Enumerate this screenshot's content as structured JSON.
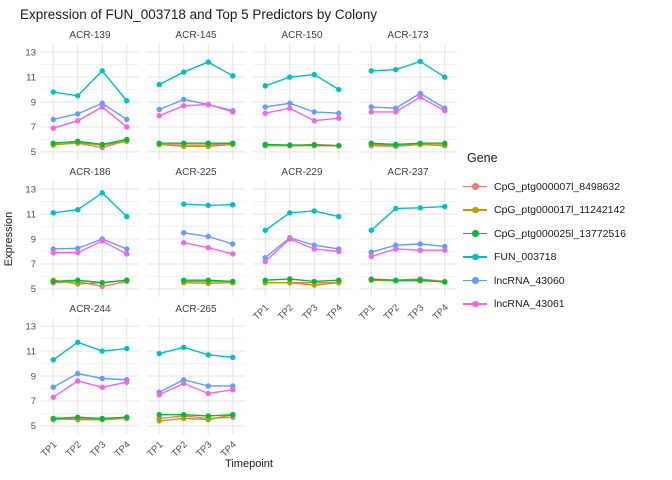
{
  "title": "Expression of FUN_003718 and Top 5 Predictors by Colony",
  "legend": {
    "title": "Gene"
  },
  "axes": {
    "x_title": "Timepoint",
    "y_title": "Expression",
    "x_ticks": [
      "TP1",
      "TP2",
      "TP3",
      "TP4"
    ],
    "y_major_ticks": [
      5,
      7,
      9,
      11,
      13
    ],
    "y_minor_ticks": [
      6,
      8,
      10,
      12
    ]
  },
  "style": {
    "grid_major_color": "#e3e3e3",
    "grid_minor_color": "#f1f1f1",
    "tick_label_color": "#4d4d4d",
    "strip_label_color": "#404040"
  },
  "chart_data": {
    "type": "line",
    "title": "Expression of FUN_003718 and Top 5 Predictors by Colony",
    "xlabel": "Timepoint",
    "ylabel": "Expression",
    "x": [
      "TP1",
      "TP2",
      "TP3",
      "TP4"
    ],
    "ylim": [
      5,
      13
    ],
    "grid": true,
    "legend_position": "right",
    "facet_by": "Colony",
    "series_names": [
      "CpG_ptg000007l_8498632",
      "CpG_ptg000017l_11242142",
      "CpG_ptg000025l_13772516",
      "FUN_003718",
      "lncRNA_43060",
      "lncRNA_43061"
    ],
    "series_colors": [
      "#F8766D",
      "#B79F00",
      "#00BA38",
      "#00BFC4",
      "#619CFF",
      "#F564E3"
    ],
    "facets": [
      {
        "name": "ACR-139",
        "values": [
          [
            5.6,
            5.7,
            5.35,
            5.9
          ],
          [
            5.55,
            5.75,
            5.55,
            5.85
          ],
          [
            5.7,
            5.85,
            5.6,
            6.0
          ],
          [
            9.8,
            9.5,
            11.5,
            9.1
          ],
          [
            7.6,
            8.05,
            8.9,
            7.6
          ],
          [
            6.9,
            7.5,
            8.6,
            7.0
          ]
        ]
      },
      {
        "name": "ACR-145",
        "values": [
          [
            5.6,
            5.55,
            5.55,
            5.7
          ],
          [
            5.6,
            5.45,
            5.45,
            5.6
          ],
          [
            5.7,
            5.7,
            5.7,
            5.7
          ],
          [
            10.4,
            11.4,
            12.2,
            11.1
          ],
          [
            8.4,
            9.2,
            8.8,
            8.3
          ],
          [
            7.9,
            8.7,
            8.8,
            8.2
          ]
        ]
      },
      {
        "name": "ACR-150",
        "values": [
          [
            5.6,
            5.5,
            5.6,
            5.5
          ],
          [
            5.5,
            5.5,
            5.5,
            5.5
          ],
          [
            5.6,
            5.55,
            5.55,
            5.5
          ],
          [
            10.3,
            11.0,
            11.2,
            10.0
          ],
          [
            8.6,
            8.9,
            8.2,
            8.1
          ],
          [
            8.1,
            8.5,
            7.5,
            7.7
          ]
        ]
      },
      {
        "name": "ACR-173",
        "values": [
          [
            5.5,
            5.45,
            5.6,
            5.5
          ],
          [
            5.6,
            5.5,
            5.6,
            5.55
          ],
          [
            5.7,
            5.6,
            5.7,
            5.7
          ],
          [
            11.5,
            11.6,
            12.25,
            11.0
          ],
          [
            8.6,
            8.5,
            9.7,
            8.5
          ],
          [
            8.2,
            8.2,
            9.4,
            8.3
          ]
        ]
      },
      {
        "name": "ACR-186",
        "values": [
          [
            5.5,
            5.6,
            5.2,
            5.6
          ],
          [
            5.7,
            5.4,
            5.5,
            5.7
          ],
          [
            5.6,
            5.7,
            5.5,
            5.7
          ],
          [
            11.1,
            11.35,
            12.7,
            10.8
          ],
          [
            8.2,
            8.25,
            9.0,
            8.2
          ],
          [
            7.9,
            7.9,
            8.85,
            7.8
          ]
        ]
      },
      {
        "name": "ACR-225",
        "values": [
          [
            null,
            5.6,
            5.6,
            5.6
          ],
          [
            null,
            5.5,
            5.45,
            5.5
          ],
          [
            null,
            5.7,
            5.7,
            5.6
          ],
          [
            null,
            11.8,
            11.7,
            11.75
          ],
          [
            null,
            9.5,
            9.2,
            8.6
          ],
          [
            null,
            8.7,
            8.3,
            7.8
          ]
        ]
      },
      {
        "name": "ACR-229",
        "values": [
          [
            5.5,
            5.5,
            5.5,
            5.5
          ],
          [
            5.5,
            5.5,
            5.3,
            5.5
          ],
          [
            5.7,
            5.8,
            5.6,
            5.7
          ],
          [
            9.7,
            11.1,
            11.25,
            10.8
          ],
          [
            7.5,
            9.1,
            8.5,
            8.2
          ],
          [
            7.2,
            9.0,
            8.2,
            8.0
          ]
        ]
      },
      {
        "name": "ACR-237",
        "values": [
          [
            5.8,
            5.7,
            5.8,
            5.6
          ],
          [
            5.7,
            5.65,
            5.65,
            5.6
          ],
          [
            5.75,
            5.7,
            5.7,
            5.55
          ],
          [
            9.7,
            11.45,
            11.5,
            11.6
          ],
          [
            7.95,
            8.5,
            8.6,
            8.4
          ],
          [
            7.6,
            8.2,
            8.1,
            8.1
          ]
        ]
      },
      {
        "name": "ACR-244",
        "values": [
          [
            5.5,
            5.6,
            5.5,
            5.6
          ],
          [
            5.6,
            5.5,
            5.5,
            5.7
          ],
          [
            5.6,
            5.7,
            5.6,
            5.7
          ],
          [
            10.3,
            11.7,
            11.0,
            11.2
          ],
          [
            8.1,
            9.2,
            8.8,
            8.7
          ],
          [
            7.3,
            8.6,
            8.1,
            8.5
          ]
        ]
      },
      {
        "name": "ACR-265",
        "values": [
          [
            5.6,
            5.8,
            5.6,
            5.7
          ],
          [
            5.4,
            5.6,
            5.5,
            5.9
          ],
          [
            5.9,
            5.9,
            5.8,
            5.9
          ],
          [
            10.8,
            11.3,
            10.7,
            10.5
          ],
          [
            7.7,
            8.7,
            8.2,
            8.2
          ],
          [
            7.5,
            8.4,
            7.6,
            7.9
          ]
        ]
      }
    ]
  }
}
